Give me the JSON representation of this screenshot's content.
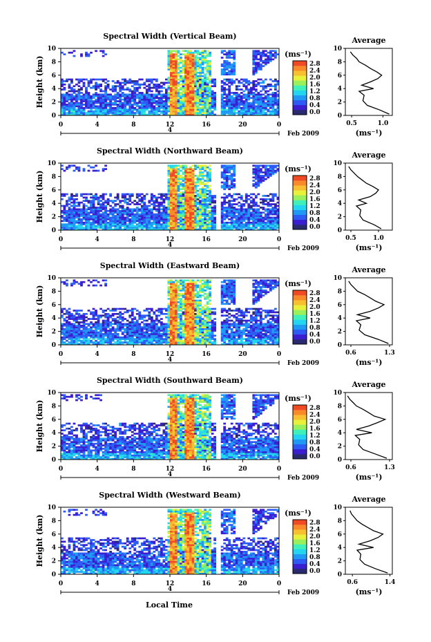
{
  "figure": {
    "xlabel": "Local Time",
    "date_label": "Feb 2009",
    "day_label": "4",
    "ylabel": "Height (km)",
    "units_label": "(ms⁻¹)",
    "avg_title": "Average",
    "avg_xlabel": "(ms⁻¹)"
  },
  "colorbar": {
    "ticks": [
      "0.0",
      "0.4",
      "0.8",
      "1.2",
      "1.6",
      "2.0",
      "2.4",
      "2.8"
    ],
    "colors": [
      "#2a2a6e",
      "#3a1fd0",
      "#2c5cf5",
      "#1f9af4",
      "#22d6f0",
      "#3ff0b8",
      "#9af05a",
      "#e8f03a",
      "#f8c030",
      "#f88a2a",
      "#f04a24"
    ]
  },
  "chart_data": [
    {
      "type": "heatmap",
      "title": "Spectral Width (Vertical Beam)",
      "xlabel": "Local Time",
      "ylabel": "Height (km)",
      "xlim": [
        0,
        24
      ],
      "ylim": [
        0,
        10
      ],
      "x_ticks": [
        "0",
        "4",
        "8",
        "12",
        "16",
        "20",
        "0"
      ],
      "y_ticks": [
        "0",
        "2",
        "4",
        "6",
        "8",
        "10"
      ],
      "colorbar_range": [
        0.0,
        2.8
      ],
      "profile": {
        "title": "Average",
        "xlabel": "(ms⁻¹)",
        "x_ticks": [
          "0.5",
          "1.0"
        ],
        "xlim": [
          0.4,
          1.15
        ],
        "heights": [
          0.2,
          0.8,
          1.5,
          2.2,
          3.0,
          3.6,
          4.0,
          4.5,
          5.0,
          5.5,
          6.0,
          6.5,
          7.0,
          7.5,
          8.0,
          8.5,
          9.0,
          9.5
        ],
        "values": [
          1.1,
          0.95,
          0.75,
          0.68,
          0.7,
          0.62,
          0.85,
          0.66,
          0.8,
          0.92,
          0.98,
          0.9,
          0.8,
          0.72,
          0.62,
          0.58,
          0.52,
          0.48
        ]
      }
    },
    {
      "type": "heatmap",
      "title": "Spectral Width (Northward Beam)",
      "xlabel": "Local Time",
      "ylabel": "Height (km)",
      "xlim": [
        0,
        24
      ],
      "ylim": [
        0,
        10
      ],
      "x_ticks": [
        "0",
        "4",
        "8",
        "12",
        "16",
        "20",
        "0"
      ],
      "y_ticks": [
        "0",
        "2",
        "4",
        "6",
        "8",
        "10"
      ],
      "colorbar_range": [
        0.0,
        2.8
      ],
      "profile": {
        "title": "Average",
        "xlabel": "(ms⁻¹)",
        "x_ticks": [
          "0.5",
          "1.0"
        ],
        "xlim": [
          0.4,
          1.25
        ],
        "heights": [
          0.2,
          0.8,
          1.5,
          2.2,
          3.0,
          3.6,
          4.0,
          4.5,
          5.0,
          5.5,
          6.0,
          6.5,
          7.0,
          7.5,
          8.0,
          8.5,
          9.0,
          9.5
        ],
        "values": [
          1.05,
          0.92,
          0.72,
          0.66,
          0.68,
          0.6,
          0.78,
          0.64,
          0.85,
          0.95,
          1.0,
          0.9,
          0.78,
          0.7,
          0.62,
          0.56,
          0.5,
          0.46
        ]
      }
    },
    {
      "type": "heatmap",
      "title": "Spectral Width (Eastward Beam)",
      "xlabel": "Local Time",
      "ylabel": "Height (km)",
      "xlim": [
        0,
        24
      ],
      "ylim": [
        0,
        10
      ],
      "x_ticks": [
        "0",
        "4",
        "8",
        "12",
        "16",
        "20",
        "0"
      ],
      "y_ticks": [
        "0",
        "2",
        "4",
        "6",
        "8",
        "10"
      ],
      "colorbar_range": [
        0.0,
        2.8
      ],
      "profile": {
        "title": "Average",
        "xlabel": "(ms⁻¹)",
        "x_ticks": [
          "0.6",
          "1.3"
        ],
        "xlim": [
          0.5,
          1.35
        ],
        "heights": [
          0.2,
          0.8,
          1.5,
          2.2,
          3.0,
          3.6,
          4.0,
          4.5,
          5.0,
          5.5,
          6.0,
          6.5,
          7.0,
          7.5,
          8.0,
          8.5,
          9.0,
          9.5
        ],
        "values": [
          1.28,
          1.1,
          0.85,
          0.75,
          0.78,
          0.7,
          0.95,
          0.72,
          0.95,
          1.1,
          1.2,
          1.05,
          0.95,
          0.85,
          0.72,
          0.66,
          0.6,
          0.56
        ]
      }
    },
    {
      "type": "heatmap",
      "title": "Spectral Width (Southward Beam)",
      "xlabel": "Local Time",
      "ylabel": "Height (km)",
      "xlim": [
        0,
        24
      ],
      "ylim": [
        0,
        10
      ],
      "x_ticks": [
        "0",
        "4",
        "8",
        "12",
        "16",
        "20",
        "0"
      ],
      "y_ticks": [
        "0",
        "2",
        "4",
        "6",
        "8",
        "10"
      ],
      "colorbar_range": [
        0.0,
        2.8
      ],
      "profile": {
        "title": "Average",
        "xlabel": "(ms⁻¹)",
        "x_ticks": [
          "0.6",
          "1.3"
        ],
        "xlim": [
          0.5,
          1.35
        ],
        "heights": [
          0.2,
          0.8,
          1.5,
          2.2,
          3.0,
          3.6,
          4.0,
          4.5,
          5.0,
          5.5,
          6.0,
          6.5,
          7.0,
          7.5,
          8.0,
          8.5,
          9.0,
          9.5
        ],
        "values": [
          1.25,
          1.05,
          0.82,
          0.74,
          0.76,
          0.68,
          0.98,
          0.7,
          0.92,
          1.08,
          1.22,
          1.02,
          0.92,
          0.82,
          0.7,
          0.64,
          0.58,
          0.54
        ]
      }
    },
    {
      "type": "heatmap",
      "title": "Spectral Width (Westward Beam)",
      "xlabel": "Local Time",
      "ylabel": "Height (km)",
      "xlim": [
        0,
        24
      ],
      "ylim": [
        0,
        10
      ],
      "x_ticks": [
        "0",
        "4",
        "8",
        "12",
        "16",
        "20",
        "0"
      ],
      "y_ticks": [
        "0",
        "2",
        "4",
        "6",
        "8",
        "10"
      ],
      "colorbar_range": [
        0.0,
        2.8
      ],
      "profile": {
        "title": "Average",
        "xlabel": "(ms⁻¹)",
        "x_ticks": [
          "0.6",
          "1.4"
        ],
        "xlim": [
          0.45,
          1.45
        ],
        "heights": [
          0.2,
          0.8,
          1.5,
          2.2,
          3.0,
          3.6,
          4.0,
          4.5,
          5.0,
          5.5,
          6.0,
          6.5,
          7.0,
          7.5,
          8.0,
          8.5,
          9.0,
          9.5
        ],
        "values": [
          1.35,
          1.1,
          0.86,
          0.76,
          0.78,
          0.7,
          1.05,
          0.74,
          0.98,
          1.15,
          1.25,
          1.05,
          0.92,
          0.8,
          0.7,
          0.64,
          0.58,
          0.55
        ]
      }
    }
  ]
}
